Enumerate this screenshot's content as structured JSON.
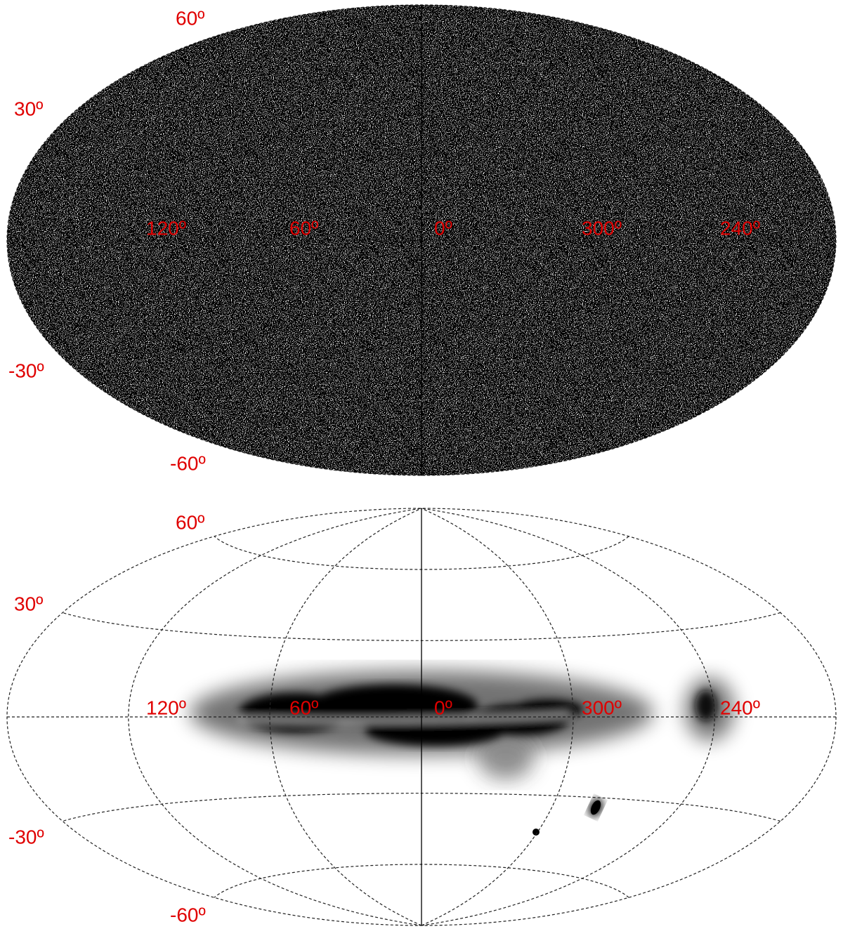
{
  "panels": [
    {
      "lat_labels": [
        "60º",
        "30º",
        "-30º",
        "-60º"
      ],
      "lon_labels": [
        "120º",
        "60º",
        "0º",
        "300º",
        "240º"
      ]
    },
    {
      "lat_labels": [
        "60º",
        "30º",
        "-30º",
        "-60º"
      ],
      "lon_labels": [
        "120º",
        "60º",
        "0º",
        "300º",
        "240º"
      ]
    }
  ]
}
